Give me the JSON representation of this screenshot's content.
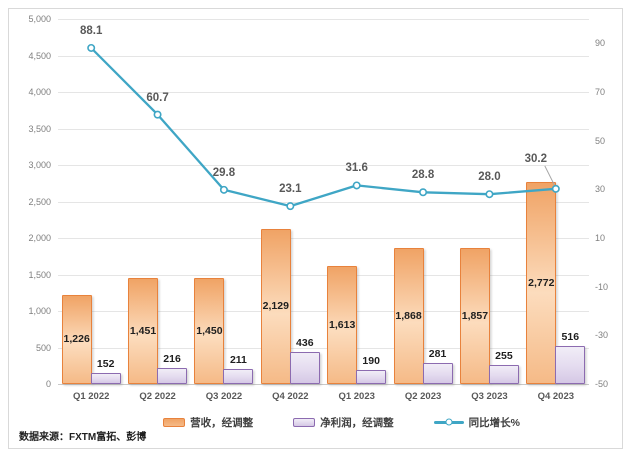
{
  "figure": {
    "source_note": "数据来源：FXTM富拓、彭博"
  },
  "colors": {
    "frame_border": "#D9D9D9",
    "gridline": "#E5E5E5",
    "axis_text": "#7F7F7F",
    "category_text": "#595959",
    "bar_value_text": "#1F1F1F",
    "line_label_text": "#595959",
    "leader_line": "#A6A6A6",
    "revenue_border": "#E8823C",
    "profit_border": "#8C6BB0",
    "growth_line": "#3FA6C5"
  },
  "chart_data": {
    "type": "combo-bar-line",
    "title": "",
    "categories": [
      "Q1 2022",
      "Q2 2022",
      "Q3 2022",
      "Q4 2022",
      "Q1 2023",
      "Q2 2023",
      "Q3 2023",
      "Q4 2023"
    ],
    "series": [
      {
        "name": "营收，经调整",
        "type": "bar",
        "axis": "primary",
        "values": [
          1226,
          1451,
          1450,
          2129,
          1613,
          1868,
          1857,
          2772
        ],
        "labels": [
          "1,226",
          "1,451",
          "1,450",
          "2,129",
          "1,613",
          "1,868",
          "1,857",
          "2,772"
        ],
        "border_color": "#E8823C",
        "fill_top": "#F0A365",
        "fill_mid": "#FCDCBD",
        "fill_bottom": "#F5BA87"
      },
      {
        "name": "净利润，经调整",
        "type": "bar",
        "axis": "primary",
        "values": [
          152,
          216,
          211,
          436,
          190,
          281,
          255,
          516
        ],
        "labels": [
          "152",
          "216",
          "211",
          "436",
          "190",
          "281",
          "255",
          "516"
        ],
        "border_color": "#8C6BB0",
        "fill_top": "#F1EDF7",
        "fill_mid": "#E4DBEF",
        "fill_bottom": "#D5C8E5"
      },
      {
        "name": "同比增长%",
        "type": "line",
        "axis": "secondary",
        "values": [
          88.1,
          60.7,
          29.8,
          23.1,
          31.6,
          28.8,
          28.0,
          30.2
        ],
        "labels": [
          "88.1",
          "60.7",
          "29.8",
          "23.1",
          "31.6",
          "28.8",
          "28.0",
          "30.2"
        ],
        "color": "#3FA6C5"
      }
    ],
    "primary_axis": {
      "min": 0,
      "max": 5000,
      "step": 500,
      "tick_labels": [
        "5,000",
        "4,500",
        "4,000",
        "3,500",
        "3,000",
        "2,500",
        "2,000",
        "1,500",
        "1,000",
        "500",
        "0"
      ]
    },
    "secondary_axis": {
      "min": -50,
      "max": 100,
      "step": 20,
      "tick_labels": [
        "90",
        "70",
        "50",
        "30",
        "10",
        "-10",
        "-30",
        "-50"
      ],
      "tick_values": [
        90,
        70,
        50,
        30,
        10,
        -10,
        -30,
        -50
      ]
    },
    "legend_position": "bottom",
    "grid": true
  }
}
